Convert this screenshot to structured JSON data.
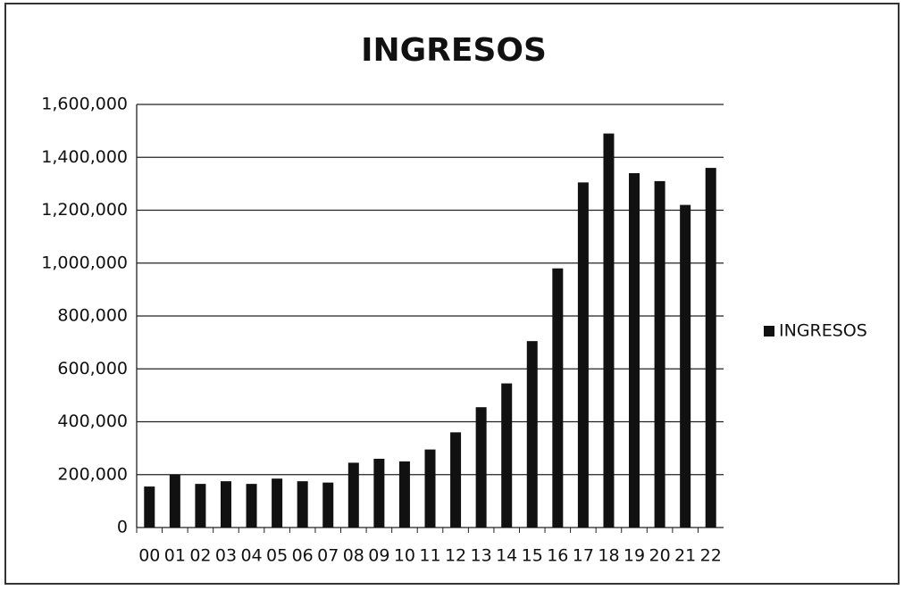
{
  "chart_data": {
    "type": "bar",
    "title": "INGRESOS",
    "categories": [
      "00",
      "01",
      "02",
      "03",
      "04",
      "05",
      "06",
      "07",
      "08",
      "09",
      "10",
      "11",
      "12",
      "13",
      "14",
      "15",
      "16",
      "17",
      "18",
      "19",
      "20",
      "21",
      "22"
    ],
    "series": [
      {
        "name": "INGRESOS",
        "color": "#111111",
        "values": [
          155000,
          200000,
          165000,
          175000,
          165000,
          185000,
          175000,
          170000,
          245000,
          260000,
          250000,
          295000,
          360000,
          455000,
          545000,
          705000,
          980000,
          1305000,
          1490000,
          1340000,
          1310000,
          1220000,
          1360000
        ]
      }
    ],
    "ylim": [
      0,
      1600000
    ],
    "yticks": [
      0,
      {
        "value": 200000,
        "label": "200,000"
      },
      {
        "value": 400000,
        "label": "400,000"
      },
      {
        "value": 600000,
        "label": "600,000"
      },
      {
        "value": 800000,
        "label": "800,000"
      },
      {
        "value": 1000000,
        "label": "1,000,000"
      },
      {
        "value": 1200000,
        "label": "1,200,000"
      },
      {
        "value": 1400000,
        "label": "1,400,000"
      },
      {
        "value": 1600000,
        "label": "1,600,000"
      }
    ],
    "grid": true,
    "legend": "right"
  }
}
